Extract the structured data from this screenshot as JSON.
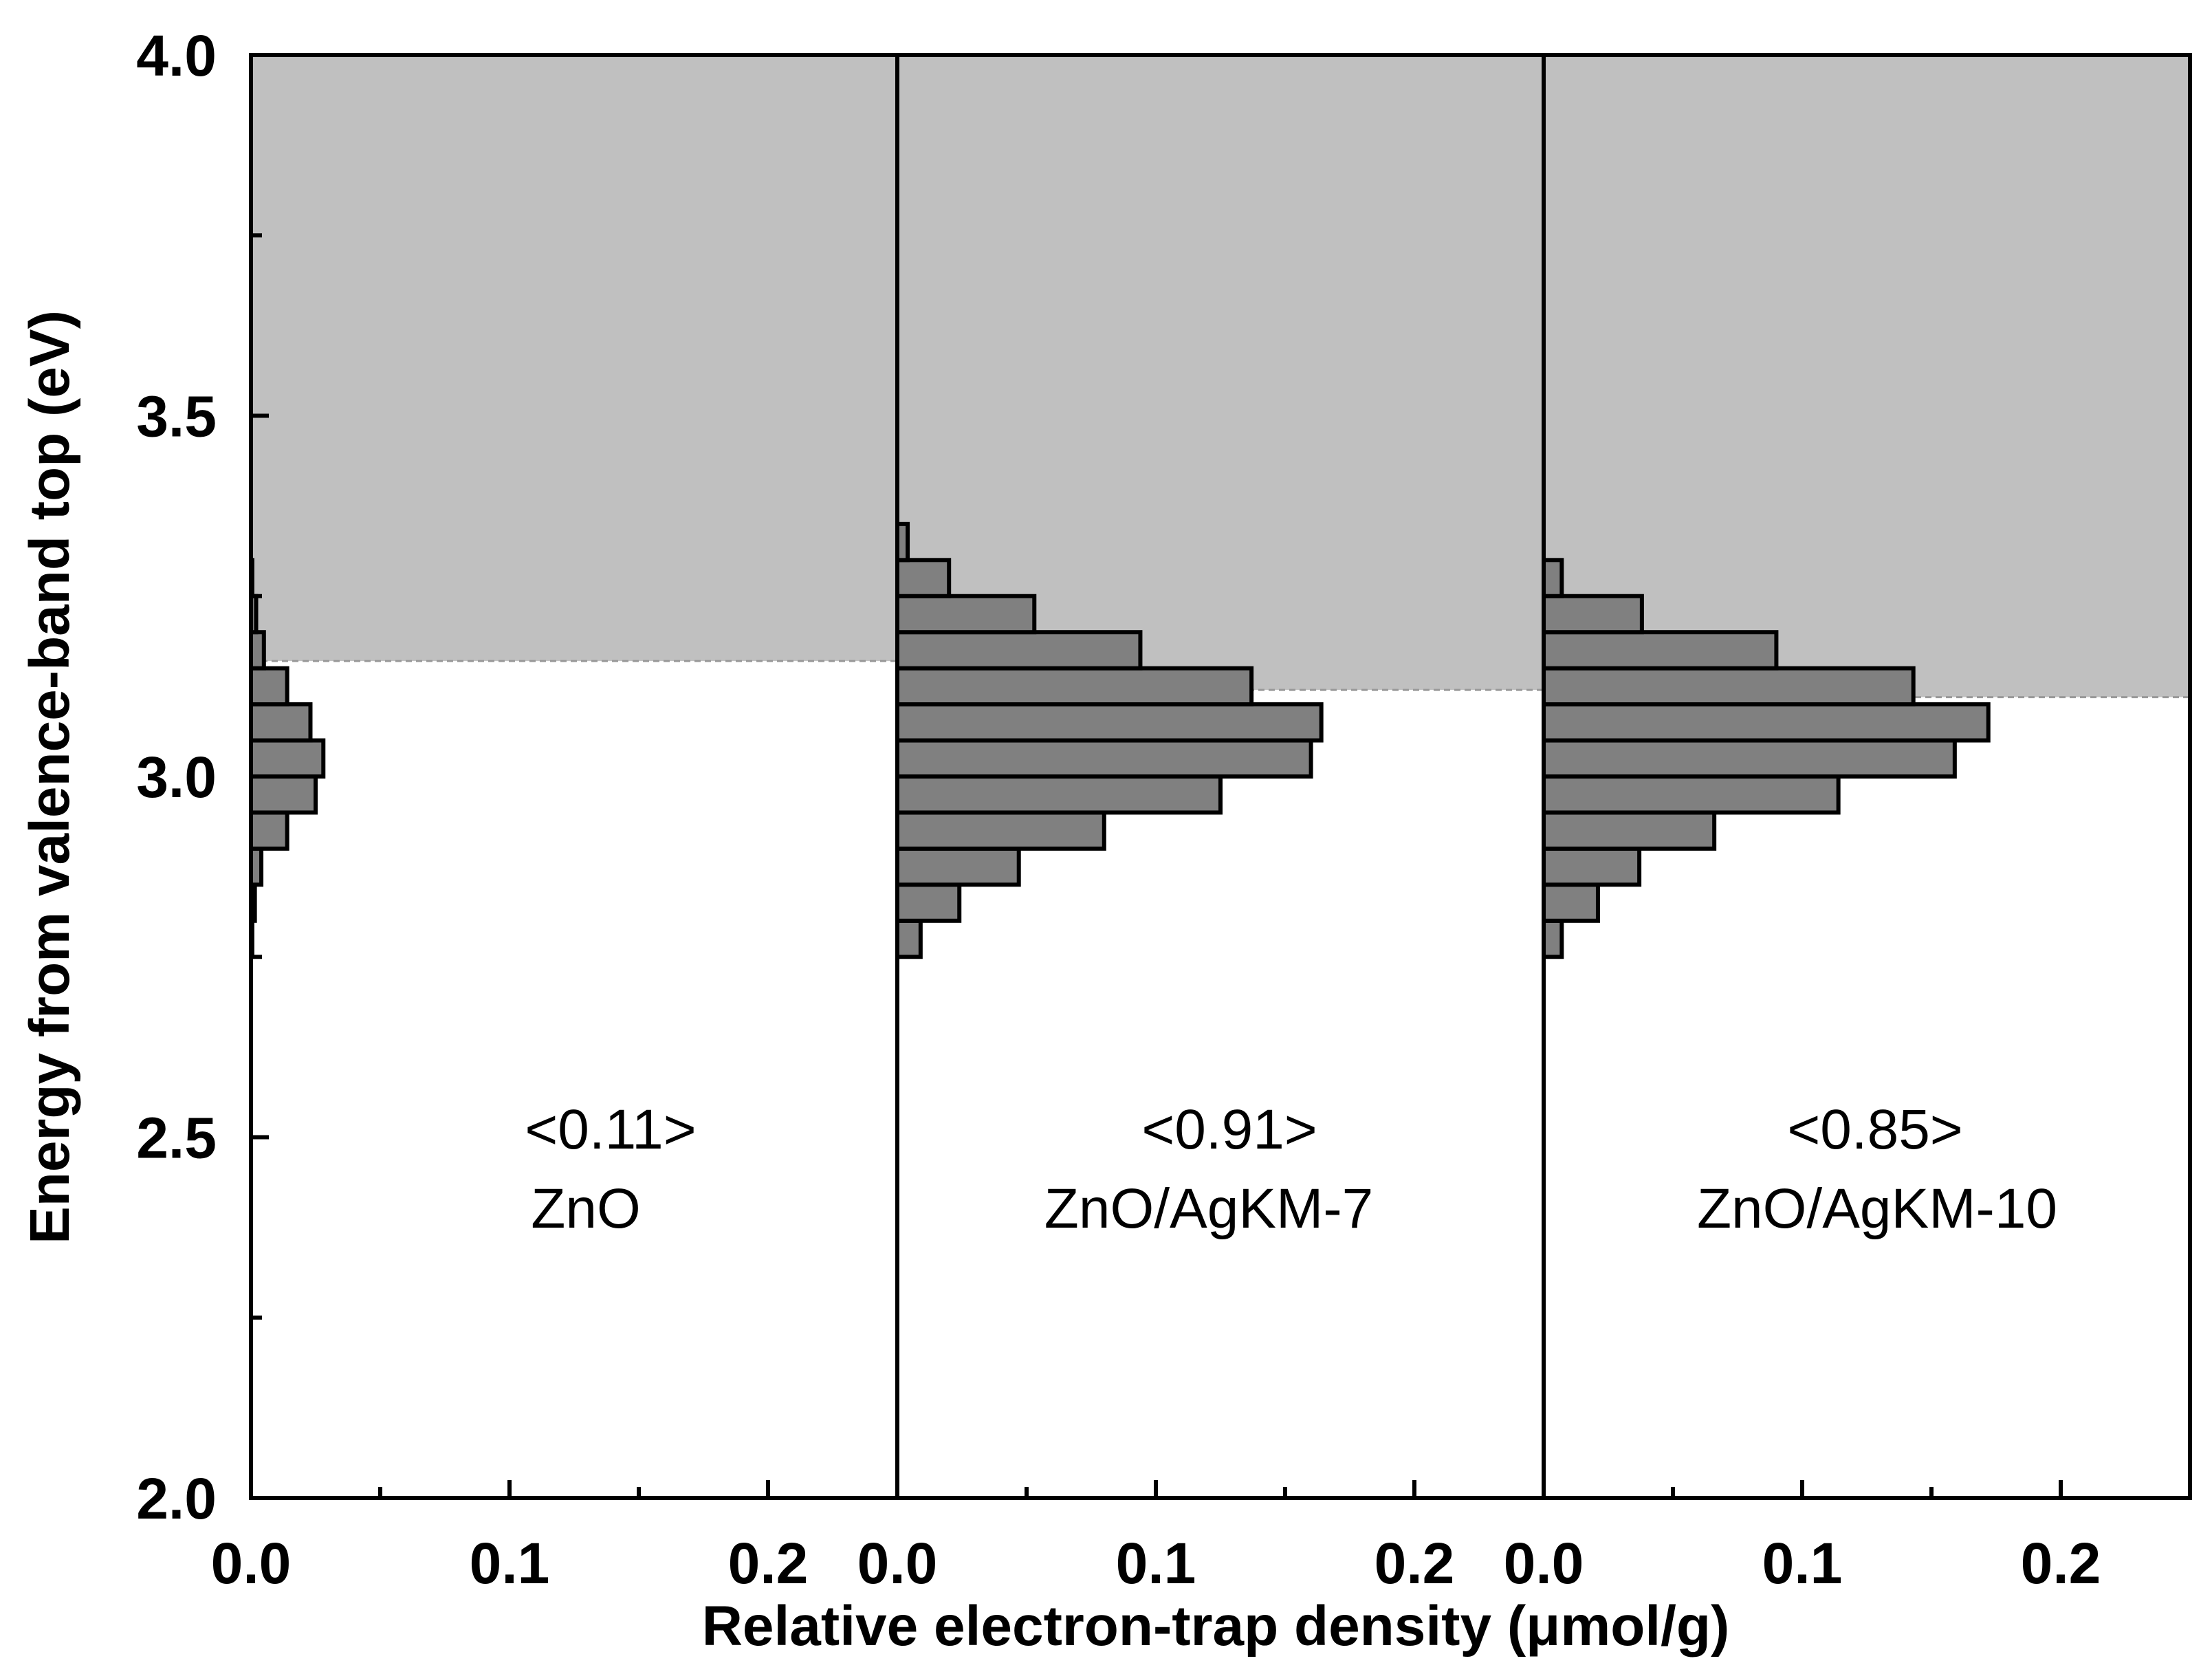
{
  "chart_data": {
    "type": "bar",
    "orientation": "horizontal",
    "xlabel": "Relative electron-trap density (μmol/g)",
    "ylabel": "Energy from valence-band top (eV)",
    "ylim": [
      2.0,
      4.0
    ],
    "xlim": [
      0,
      0.25
    ],
    "y_ticks": [
      "2.0",
      "2.5",
      "3.0",
      "3.5",
      "4.0"
    ],
    "y_tick_values": [
      2.0,
      2.5,
      3.0,
      3.5,
      4.0
    ],
    "x_ticks": [
      "0.0",
      "0.1",
      "0.2"
    ],
    "x_tick_values": [
      0.0,
      0.1,
      0.2
    ],
    "bin_width_eV": 0.05,
    "bin_centers_eV": [
      2.775,
      2.825,
      2.875,
      2.925,
      2.975,
      3.025,
      3.075,
      3.125,
      3.175,
      3.225,
      3.275,
      3.325
    ],
    "colors": {
      "bar_fill": "#808080",
      "bar_edge": "#000000",
      "band_fill": "#c0c0c0",
      "axis": "#000000",
      "cbm_line": "#999999"
    },
    "panels": [
      {
        "name": "ZnO",
        "total_label": "<0.11>",
        "sample_label": "ZnO",
        "conduction_band_edge_eV": 3.16,
        "values": [
          0.0005,
          0.0015,
          0.004,
          0.014,
          0.025,
          0.028,
          0.023,
          0.014,
          0.005,
          0.002,
          0.0005,
          0.0
        ]
      },
      {
        "name": "ZnO/AgKM-7",
        "total_label": "<0.91>",
        "sample_label": "ZnO/AgKM-7",
        "conduction_band_edge_eV": 3.12,
        "values": [
          0.009,
          0.024,
          0.047,
          0.08,
          0.125,
          0.16,
          0.164,
          0.137,
          0.094,
          0.053,
          0.02,
          0.004
        ]
      },
      {
        "name": "ZnO/AgKM-10",
        "total_label": "<0.85>",
        "sample_label": "ZnO/AgKM-10",
        "conduction_band_edge_eV": 3.11,
        "values": [
          0.007,
          0.021,
          0.037,
          0.066,
          0.114,
          0.159,
          0.172,
          0.143,
          0.09,
          0.038,
          0.007,
          0.0
        ]
      }
    ]
  }
}
